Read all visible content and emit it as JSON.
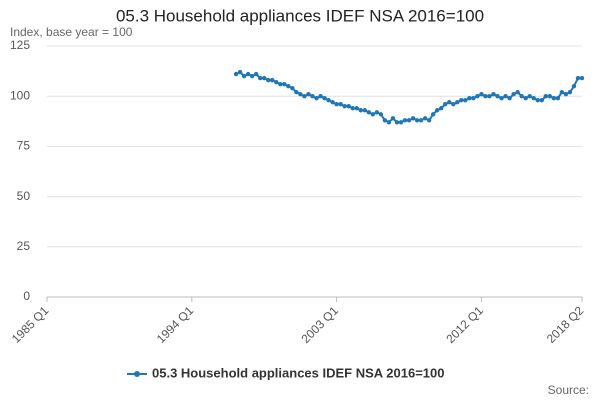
{
  "chart_data": {
    "type": "line",
    "title": "05.3 Household appliances IDEF NSA 2016=100",
    "subtitle": "Index, base year = 100",
    "source": "Source:",
    "categories": [
      "1985 Q1",
      null,
      null,
      null,
      null,
      null,
      null,
      null,
      null,
      null,
      null,
      null,
      null,
      null,
      null,
      null,
      null,
      null,
      null,
      null,
      null,
      null,
      null,
      null,
      null,
      null,
      null,
      null,
      null,
      null,
      null,
      null,
      null,
      null,
      null,
      null,
      "1994 Q1",
      null,
      null,
      null,
      null,
      null,
      null,
      null,
      null,
      null,
      null,
      null,
      null,
      null,
      null,
      null,
      null,
      null,
      null,
      null,
      null,
      null,
      null,
      null,
      null,
      null,
      null,
      null,
      null,
      null,
      null,
      null,
      null,
      null,
      null,
      null,
      "2003 Q1",
      null,
      null,
      null,
      null,
      null,
      null,
      null,
      null,
      null,
      null,
      null,
      null,
      null,
      null,
      null,
      null,
      null,
      null,
      null,
      null,
      null,
      null,
      null,
      null,
      null,
      null,
      null,
      null,
      null,
      null,
      null,
      null,
      null,
      null,
      null,
      "2012 Q1",
      null,
      null,
      null,
      null,
      null,
      null,
      null,
      null,
      null,
      null,
      null,
      null,
      null,
      null,
      null,
      null,
      null,
      null,
      null,
      null,
      null,
      null,
      null,
      null,
      "2018 Q2"
    ],
    "series": [
      {
        "name": "05.3 Household appliances IDEF NSA 2016=100",
        "color": "#1f78b4",
        "values": [
          null,
          null,
          null,
          null,
          null,
          null,
          null,
          null,
          null,
          null,
          null,
          null,
          null,
          null,
          null,
          null,
          null,
          null,
          null,
          null,
          null,
          null,
          null,
          null,
          null,
          null,
          null,
          null,
          null,
          null,
          null,
          null,
          null,
          null,
          null,
          null,
          null,
          null,
          null,
          null,
          null,
          null,
          null,
          null,
          null,
          null,
          null,
          111,
          112,
          110,
          111,
          110,
          111,
          109,
          109,
          108,
          108,
          107,
          106,
          106,
          105,
          104,
          102,
          101,
          100,
          101,
          100,
          99,
          100,
          99,
          98,
          97,
          96,
          96,
          95,
          95,
          94,
          94,
          93,
          93,
          92,
          91,
          92,
          91,
          88,
          87,
          89,
          87,
          87,
          88,
          88,
          89,
          88,
          88,
          89,
          88,
          91,
          93,
          94,
          96,
          97,
          96,
          97,
          98,
          98,
          99,
          99,
          100,
          101,
          100,
          100,
          101,
          100,
          99,
          100,
          99,
          101,
          102,
          100,
          99,
          100,
          99,
          98,
          98,
          100,
          100,
          99,
          99,
          102,
          101,
          102,
          105,
          109,
          109
        ]
      }
    ],
    "ylim": [
      0,
      125
    ],
    "yticks": [
      0,
      25,
      50,
      75,
      100,
      125
    ],
    "grid": true
  }
}
